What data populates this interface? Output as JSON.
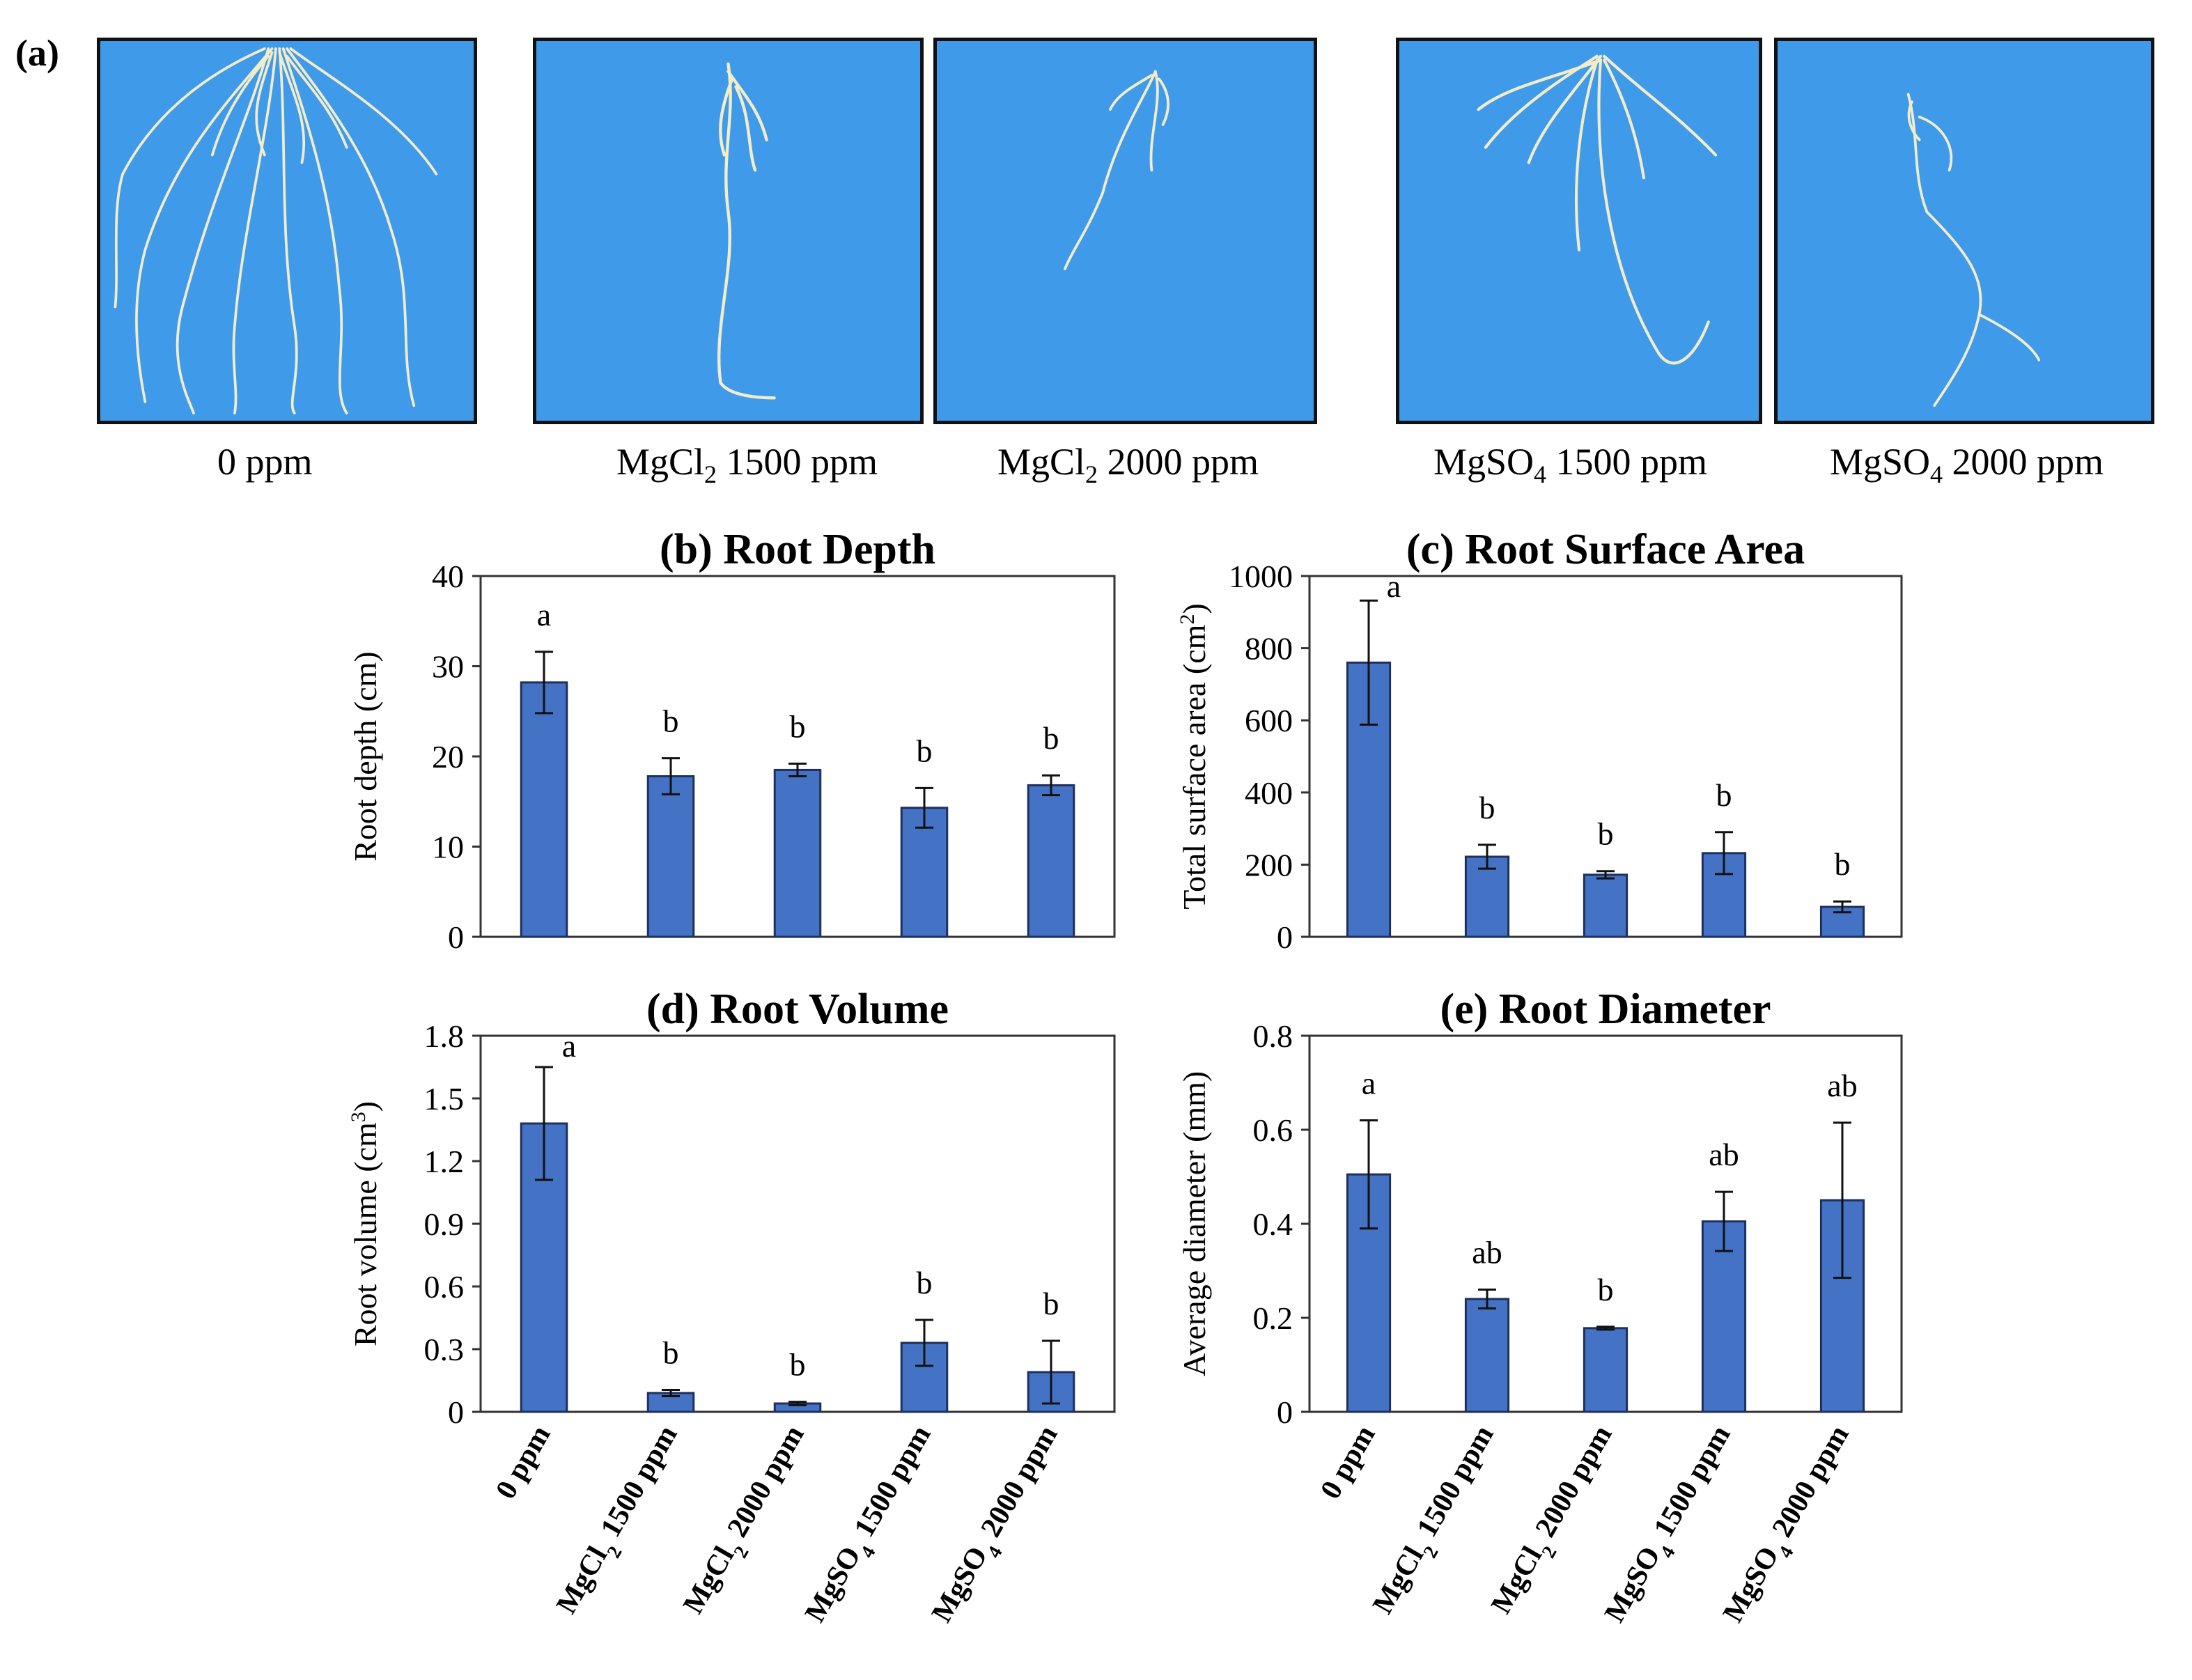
{
  "panel_a": {
    "letter": "(a)",
    "photos": [
      {
        "base": "0 ppm",
        "sub": "",
        "tail": ""
      },
      {
        "base": "MgCl",
        "sub": "2",
        "tail": " 1500 ppm"
      },
      {
        "base": "MgCl",
        "sub": "2",
        "tail": " 2000 ppm"
      },
      {
        "base": "MgSO",
        "sub": "4",
        "tail": " 1500 ppm"
      },
      {
        "base": "MgSO",
        "sub": "4",
        "tail": " 2000 ppm"
      }
    ]
  },
  "colors": {
    "bar": "#4472c4",
    "bar_edge": "#1f2f5e",
    "photo_bg": "#3f9bea",
    "root": "#f2ecc8"
  },
  "x_categories": [
    {
      "base": "0 ppm",
      "sub": "",
      "tail": ""
    },
    {
      "base": "MgCl",
      "sub": "2",
      "tail": " 1500 ppm"
    },
    {
      "base": "MgCl",
      "sub": "2",
      "tail": " 2000 ppm"
    },
    {
      "base": "MgSO",
      "sub": "4",
      "tail": " 1500 ppm"
    },
    {
      "base": "MgSO",
      "sub": "4",
      "tail": " 2000 ppm"
    }
  ],
  "chart_data": [
    {
      "id": "b",
      "type": "bar",
      "title": "(b) Root Depth",
      "ylabel": "Root depth (cm)",
      "ylabel_sup": "",
      "ylabel_tail": "",
      "ylim": [
        0,
        40
      ],
      "yticks": [
        "0",
        "10",
        "20",
        "30",
        "40"
      ],
      "categories": [
        "0 ppm",
        "MgCl2 1500 ppm",
        "MgCl2 2000 ppm",
        "MgSO4 1500 ppm",
        "MgSO4 2000 ppm"
      ],
      "values": [
        28.2,
        17.8,
        18.5,
        14.3,
        16.8
      ],
      "errors": [
        3.4,
        2.0,
        0.7,
        2.2,
        1.1
      ],
      "letters": [
        "a",
        "b",
        "b",
        "b",
        "b"
      ]
    },
    {
      "id": "c",
      "type": "bar",
      "title": "(c) Root Surface Area",
      "ylabel": "Total surface area (cm",
      "ylabel_sup": "2",
      "ylabel_tail": ")",
      "ylim": [
        0,
        1000
      ],
      "yticks": [
        "0",
        "200",
        "400",
        "600",
        "800",
        "1000"
      ],
      "categories": [
        "0 ppm",
        "MgCl2 1500 ppm",
        "MgCl2 2000 ppm",
        "MgSO4 1500 ppm",
        "MgSO4 2000 ppm"
      ],
      "values": [
        760,
        222,
        172,
        232,
        83
      ],
      "errors": [
        172,
        33,
        10,
        58,
        15
      ],
      "letters": [
        "a",
        "b",
        "b",
        "b",
        "b"
      ]
    },
    {
      "id": "d",
      "type": "bar",
      "title": "(d) Root Volume",
      "ylabel": "Root volume (cm",
      "ylabel_sup": "3",
      "ylabel_tail": ")",
      "ylim": [
        0,
        1.8
      ],
      "yticks": [
        "0",
        "0.3",
        "0.6",
        "0.9",
        "1.2",
        "1.5",
        "1.8"
      ],
      "categories": [
        "0 ppm",
        "MgCl2 1500 ppm",
        "MgCl2 2000 ppm",
        "MgSO4 1500 ppm",
        "MgSO4 2000 ppm"
      ],
      "values": [
        1.38,
        0.09,
        0.04,
        0.33,
        0.19
      ],
      "errors": [
        0.27,
        0.015,
        0.008,
        0.11,
        0.15
      ],
      "letters": [
        "a",
        "b",
        "b",
        "b",
        "b"
      ]
    },
    {
      "id": "e",
      "type": "bar",
      "title": "(e) Root Diameter",
      "ylabel": "Average diameter (mm)",
      "ylabel_sup": "",
      "ylabel_tail": "",
      "ylim": [
        0,
        0.8
      ],
      "yticks": [
        "0",
        "0.2",
        "0.4",
        "0.6",
        "0.8"
      ],
      "categories": [
        "0 ppm",
        "MgCl2 1500 ppm",
        "MgCl2 2000 ppm",
        "MgSO4 1500 ppm",
        "MgSO4 2000 ppm"
      ],
      "values": [
        0.505,
        0.24,
        0.178,
        0.405,
        0.45
      ],
      "errors": [
        0.115,
        0.02,
        0.003,
        0.063,
        0.165
      ],
      "letters": [
        "a",
        "ab",
        "b",
        "ab",
        "ab"
      ]
    }
  ]
}
